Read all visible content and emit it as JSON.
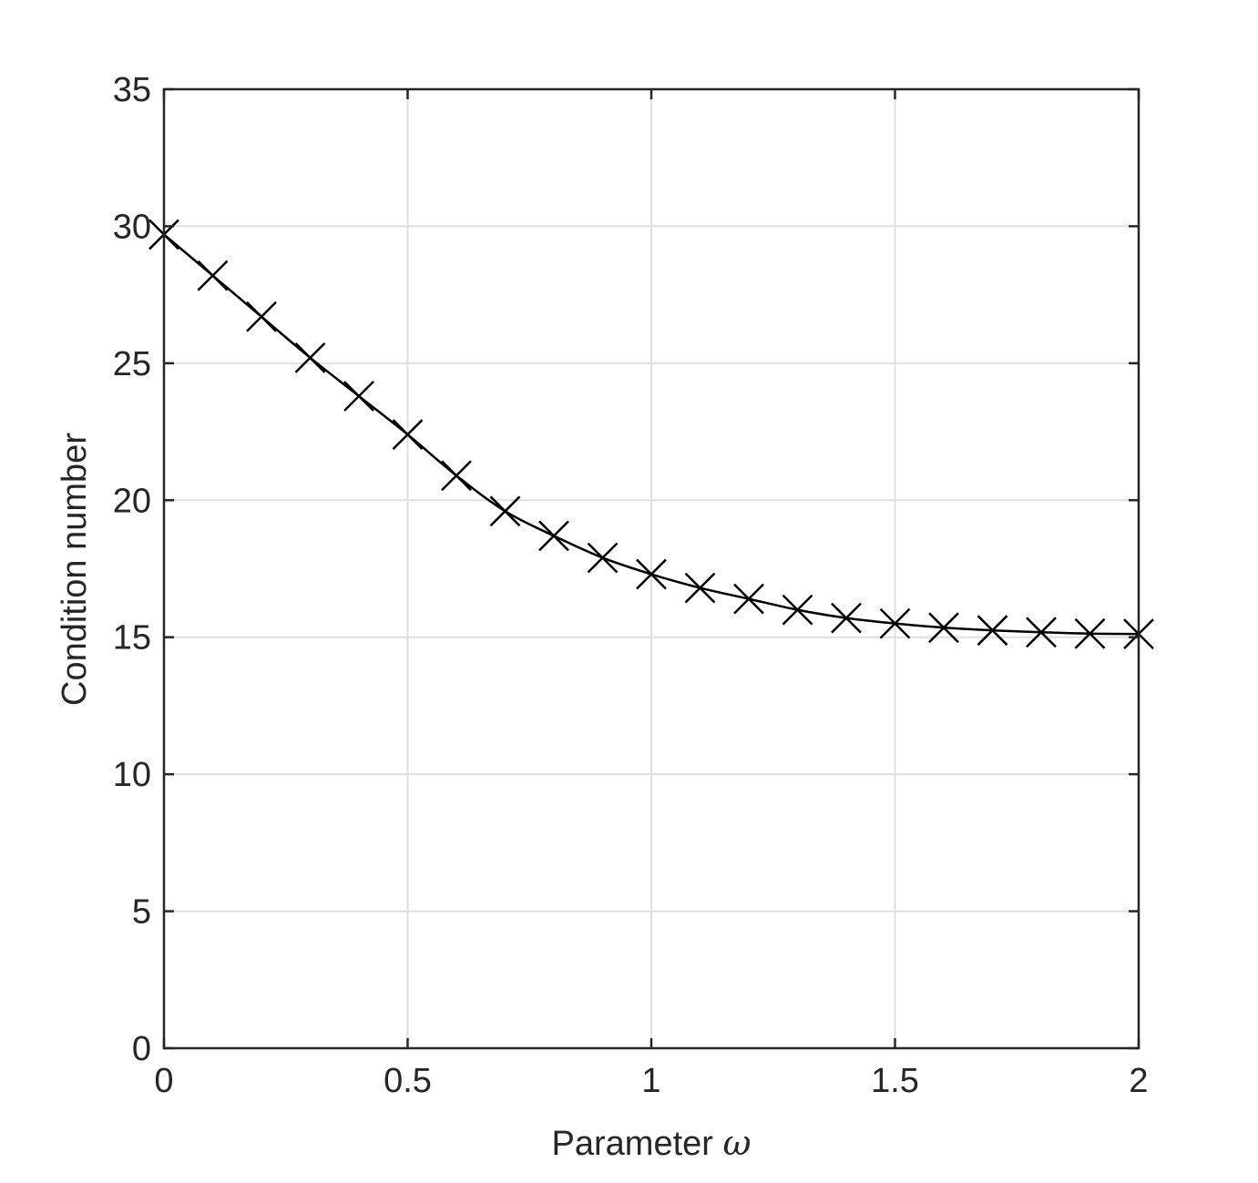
{
  "chart_data": {
    "type": "line",
    "title": "",
    "xlabel": "Parameter",
    "xlabel_symbol": "ω",
    "ylabel": "Condition number",
    "xlim": [
      0,
      2
    ],
    "ylim": [
      0,
      35
    ],
    "x_ticks": [
      0,
      0.5,
      1,
      1.5,
      2
    ],
    "x_tick_labels": [
      "0",
      "0.5",
      "1",
      "1.5",
      "2"
    ],
    "y_ticks": [
      0,
      5,
      10,
      15,
      20,
      25,
      30,
      35
    ],
    "y_tick_labels": [
      "0",
      "5",
      "10",
      "15",
      "20",
      "25",
      "30",
      "35"
    ],
    "grid": true,
    "legend": "none",
    "series": [
      {
        "marker": "x",
        "line": "solid",
        "color": "#000000",
        "x": [
          0,
          0.1,
          0.2,
          0.3,
          0.4,
          0.5,
          0.6,
          0.7,
          0.8,
          0.9,
          1.0,
          1.1,
          1.2,
          1.3,
          1.4,
          1.5,
          1.6,
          1.7,
          1.8,
          1.9,
          2.0
        ],
        "values": [
          29.7,
          28.2,
          26.7,
          25.2,
          23.8,
          22.4,
          20.9,
          19.6,
          18.7,
          17.9,
          17.3,
          16.8,
          16.4,
          16.0,
          15.7,
          15.5,
          15.35,
          15.25,
          15.18,
          15.13,
          15.12
        ]
      }
    ]
  },
  "colors": {
    "axis": "#262626",
    "grid": "#dfdfdf",
    "series": "#000000"
  }
}
